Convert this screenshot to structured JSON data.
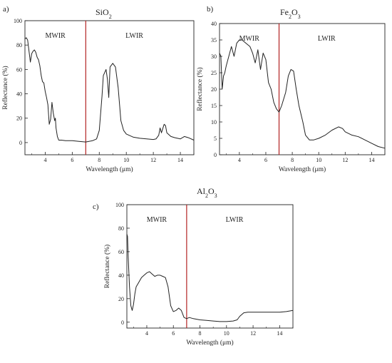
{
  "chart_data": [
    {
      "panel_label": "a)",
      "type": "line",
      "title_base": "SiO",
      "title_sub": "2",
      "title_tail": "",
      "xlabel": "Wavelength (μm)",
      "ylabel": "Reflectance (%)",
      "xlim": [
        2.5,
        15
      ],
      "ylim": [
        -10,
        100
      ],
      "xticks": [
        4,
        6,
        8,
        10,
        12,
        14
      ],
      "yticks": [
        0,
        20,
        40,
        60,
        80,
        100
      ],
      "region_left": "MWIR",
      "region_right": "LWIR",
      "divider_x": 7,
      "divider_color": "#b22222",
      "line_color": "#222222",
      "series": [
        {
          "x": [
            2.5,
            2.6,
            2.7,
            2.8,
            2.9,
            3.0,
            3.1,
            3.2,
            3.3,
            3.4,
            3.5,
            3.6,
            3.7,
            3.8,
            3.9,
            4.0,
            4.1,
            4.2,
            4.3,
            4.4,
            4.5,
            4.6,
            4.7,
            4.75,
            4.8,
            4.9,
            5.0,
            5.2,
            5.5,
            6.0,
            6.5,
            7.0,
            7.5,
            7.8,
            8.0,
            8.2,
            8.3,
            8.5,
            8.6,
            8.7,
            8.8,
            9.0,
            9.2,
            9.4,
            9.6,
            9.8,
            10.0,
            10.5,
            11.0,
            11.5,
            12.0,
            12.2,
            12.4,
            12.5,
            12.6,
            12.8,
            12.9,
            13.0,
            13.3,
            13.6,
            14.0,
            14.3,
            14.6,
            15.0
          ],
          "y": [
            85,
            86,
            84,
            75,
            66,
            73,
            75,
            76,
            74,
            70,
            68,
            63,
            55,
            50,
            49,
            42,
            37,
            31,
            15,
            19,
            33,
            24,
            18,
            20,
            12,
            5,
            2,
            2,
            1.5,
            1.5,
            1,
            0.5,
            1.5,
            3,
            10,
            38,
            55,
            60,
            52,
            37,
            62,
            65,
            62,
            45,
            18,
            10,
            7,
            4.5,
            3.5,
            3,
            2.5,
            3,
            6,
            12,
            8,
            15,
            14,
            8,
            5,
            4,
            3,
            5,
            4,
            2
          ]
        }
      ]
    },
    {
      "panel_label": "b)",
      "type": "line",
      "title_base": "Fe",
      "title_sub": "2",
      "title_tail": "O",
      "title_sub2": "3",
      "xlabel": "Wavelength (μm)",
      "ylabel": "Reflectance (%)",
      "xlim": [
        2.5,
        15
      ],
      "ylim": [
        0,
        40
      ],
      "xticks": [
        4,
        6,
        8,
        10,
        12,
        14
      ],
      "yticks": [
        0,
        5,
        10,
        15,
        20,
        25,
        30,
        35,
        40
      ],
      "region_left": "MWIR",
      "region_right": "LWIR",
      "divider_x": 7,
      "divider_color": "#b22222",
      "line_color": "#222222",
      "series": [
        {
          "x": [
            2.5,
            2.6,
            2.7,
            2.8,
            2.9,
            3.0,
            3.2,
            3.4,
            3.6,
            3.8,
            4.0,
            4.2,
            4.5,
            4.8,
            5.0,
            5.2,
            5.4,
            5.6,
            5.8,
            6.0,
            6.2,
            6.4,
            6.6,
            6.8,
            7.0,
            7.2,
            7.5,
            7.7,
            7.9,
            8.1,
            8.3,
            8.5,
            8.8,
            9.0,
            9.3,
            9.6,
            10.0,
            10.5,
            11.0,
            11.5,
            11.8,
            12.0,
            12.5,
            13.0,
            13.5,
            14.0,
            14.5,
            15.0
          ],
          "y": [
            31,
            30,
            20,
            24,
            25,
            27,
            30,
            33,
            30,
            34,
            35,
            35,
            34,
            33,
            31,
            28,
            32,
            26,
            31,
            29,
            22,
            20,
            16,
            14,
            13,
            15,
            19,
            24,
            26,
            25.5,
            20,
            15,
            10,
            6,
            4.5,
            4.5,
            5,
            6,
            7.5,
            8.5,
            8,
            7,
            6,
            5.5,
            4.5,
            3.5,
            2.5,
            2
          ]
        }
      ]
    },
    {
      "panel_label": "c)",
      "type": "line",
      "title_base": "Al",
      "title_sub": "2",
      "title_tail": "O",
      "title_sub2": "3",
      "xlabel": "Wavelength (μm)",
      "ylabel": "Reflectance (%)",
      "xlim": [
        2.5,
        15
      ],
      "ylim": [
        -5,
        100
      ],
      "xticks": [
        4,
        6,
        8,
        10,
        12,
        14
      ],
      "yticks": [
        0,
        20,
        40,
        60,
        80,
        100
      ],
      "region_left": "MWIR",
      "region_right": "LWIR",
      "divider_x": 7,
      "divider_color": "#b22222",
      "line_color": "#222222",
      "series": [
        {
          "x": [
            2.5,
            2.55,
            2.6,
            2.7,
            2.8,
            2.9,
            3.0,
            3.1,
            3.2,
            3.4,
            3.6,
            3.8,
            4.0,
            4.2,
            4.4,
            4.6,
            4.8,
            5.0,
            5.2,
            5.4,
            5.6,
            5.8,
            6.0,
            6.2,
            6.4,
            6.6,
            6.8,
            7.0,
            7.2,
            7.5,
            8.0,
            8.5,
            9.0,
            9.5,
            10.0,
            10.5,
            10.8,
            11.0,
            11.3,
            11.6,
            12.0,
            12.5,
            13.0,
            13.5,
            14.0,
            14.5,
            15.0
          ],
          "y": [
            75,
            73,
            55,
            30,
            14,
            10,
            15,
            24,
            30,
            34,
            38,
            40,
            42,
            43,
            41,
            39,
            40,
            40,
            39,
            38,
            30,
            14,
            9,
            10,
            12,
            10,
            4,
            3,
            4,
            3,
            2,
            1.5,
            1,
            0.5,
            0.5,
            1,
            2,
            5,
            8,
            8.5,
            8.5,
            8.5,
            8.5,
            8.5,
            8.5,
            9,
            10
          ]
        }
      ]
    }
  ]
}
